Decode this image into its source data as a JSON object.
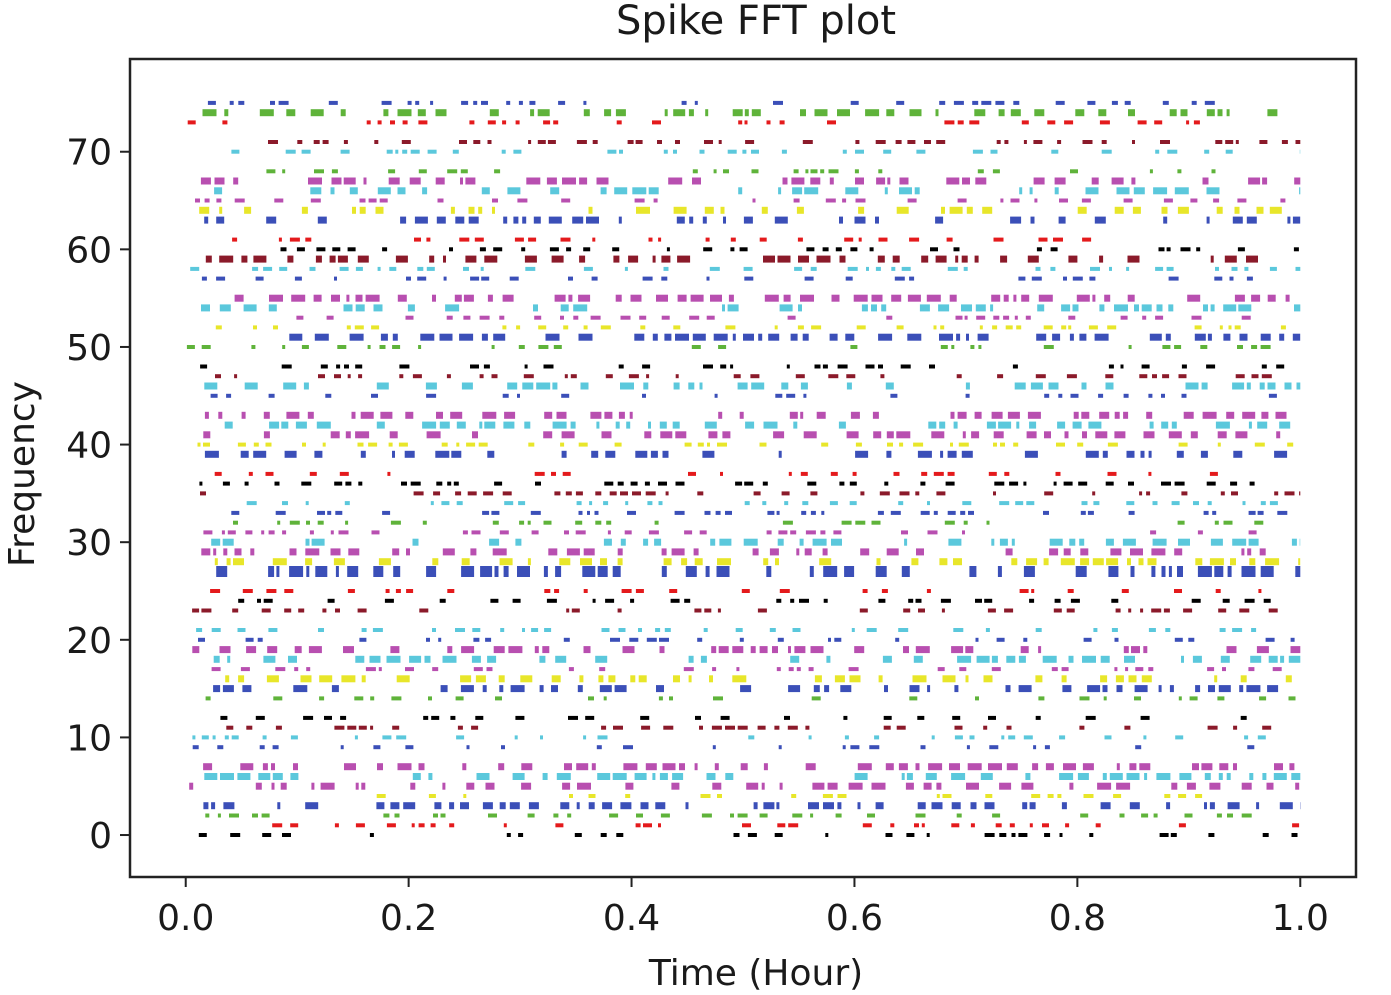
{
  "chart_data": {
    "type": "scatter",
    "subtype": "eventplot",
    "title": "Spike FFT plot",
    "xlabel": "Time (Hour)",
    "ylabel": "Frequency",
    "xlim": [
      -0.05,
      1.05
    ],
    "ylim": [
      -4.3,
      79.5
    ],
    "xticks": [
      0.0,
      0.2,
      0.4,
      0.6,
      0.8,
      1.0
    ],
    "xtick_labels": [
      "0.0",
      "0.2",
      "0.4",
      "0.6",
      "0.8",
      "1.0"
    ],
    "yticks": [
      0,
      10,
      20,
      30,
      40,
      50,
      60,
      70
    ],
    "ytick_labels": [
      "0",
      "10",
      "20",
      "30",
      "40",
      "50",
      "60",
      "70"
    ],
    "grid": false,
    "legend": "none",
    "x_range": [
      0.0,
      1.0
    ],
    "rows": [
      {
        "y": 0,
        "color": "#000000",
        "density": 0.35,
        "width": 1
      },
      {
        "y": 1,
        "color": "#e41a1c",
        "density": 0.35,
        "width": 1
      },
      {
        "y": 2,
        "color": "#5fb33a",
        "density": 0.4,
        "width": 1
      },
      {
        "y": 3,
        "color": "#3b4fb8",
        "density": 0.5,
        "width": 2
      },
      {
        "y": 4,
        "color": "#e8e62a",
        "density": 0.3,
        "width": 1
      },
      {
        "y": 5,
        "color": "#b84fb0",
        "density": 0.45,
        "width": 2
      },
      {
        "y": 6,
        "color": "#5bc8dc",
        "density": 0.45,
        "width": 2
      },
      {
        "y": 7,
        "color": "#b84fb0",
        "density": 0.5,
        "width": 2
      },
      {
        "y": 9,
        "color": "#3b4fb8",
        "density": 0.3,
        "width": 1
      },
      {
        "y": 10,
        "color": "#5bc8dc",
        "density": 0.35,
        "width": 1
      },
      {
        "y": 11,
        "color": "#8b1a2a",
        "density": 0.35,
        "width": 1
      },
      {
        "y": 12,
        "color": "#000000",
        "density": 0.35,
        "width": 1
      },
      {
        "y": 14,
        "color": "#5fb33a",
        "density": 0.3,
        "width": 1
      },
      {
        "y": 15,
        "color": "#3b4fb8",
        "density": 0.45,
        "width": 2
      },
      {
        "y": 16,
        "color": "#e8e62a",
        "density": 0.4,
        "width": 2
      },
      {
        "y": 17,
        "color": "#b84fb0",
        "density": 0.35,
        "width": 1
      },
      {
        "y": 18,
        "color": "#5bc8dc",
        "density": 0.4,
        "width": 2
      },
      {
        "y": 19,
        "color": "#b84fb0",
        "density": 0.4,
        "width": 2
      },
      {
        "y": 20,
        "color": "#3b4fb8",
        "density": 0.3,
        "width": 1
      },
      {
        "y": 21,
        "color": "#5bc8dc",
        "density": 0.3,
        "width": 1
      },
      {
        "y": 23,
        "color": "#8b1a2a",
        "density": 0.35,
        "width": 1
      },
      {
        "y": 24,
        "color": "#000000",
        "density": 0.35,
        "width": 1
      },
      {
        "y": 25,
        "color": "#e41a1c",
        "density": 0.3,
        "width": 1
      },
      {
        "y": 27,
        "color": "#3b4fb8",
        "density": 0.55,
        "width": 3
      },
      {
        "y": 28,
        "color": "#e8e62a",
        "density": 0.4,
        "width": 2
      },
      {
        "y": 29,
        "color": "#b84fb0",
        "density": 0.4,
        "width": 2
      },
      {
        "y": 30,
        "color": "#5bc8dc",
        "density": 0.4,
        "width": 2
      },
      {
        "y": 31,
        "color": "#b84fb0",
        "density": 0.35,
        "width": 1
      },
      {
        "y": 32,
        "color": "#5fb33a",
        "density": 0.3,
        "width": 1
      },
      {
        "y": 33,
        "color": "#3b4fb8",
        "density": 0.3,
        "width": 1
      },
      {
        "y": 34,
        "color": "#5bc8dc",
        "density": 0.3,
        "width": 1
      },
      {
        "y": 35,
        "color": "#8b1a2a",
        "density": 0.4,
        "width": 1
      },
      {
        "y": 36,
        "color": "#000000",
        "density": 0.45,
        "width": 1
      },
      {
        "y": 37,
        "color": "#e41a1c",
        "density": 0.35,
        "width": 1
      },
      {
        "y": 39,
        "color": "#3b4fb8",
        "density": 0.45,
        "width": 2
      },
      {
        "y": 40,
        "color": "#e8e62a",
        "density": 0.35,
        "width": 1
      },
      {
        "y": 41,
        "color": "#b84fb0",
        "density": 0.45,
        "width": 2
      },
      {
        "y": 42,
        "color": "#5bc8dc",
        "density": 0.4,
        "width": 2
      },
      {
        "y": 43,
        "color": "#b84fb0",
        "density": 0.45,
        "width": 2
      },
      {
        "y": 45,
        "color": "#3b4fb8",
        "density": 0.25,
        "width": 1
      },
      {
        "y": 46,
        "color": "#5bc8dc",
        "density": 0.4,
        "width": 2
      },
      {
        "y": 47,
        "color": "#8b1a2a",
        "density": 0.35,
        "width": 1
      },
      {
        "y": 48,
        "color": "#000000",
        "density": 0.35,
        "width": 1
      },
      {
        "y": 50,
        "color": "#5fb33a",
        "density": 0.3,
        "width": 1
      },
      {
        "y": 51,
        "color": "#3b4fb8",
        "density": 0.45,
        "width": 2
      },
      {
        "y": 52,
        "color": "#e8e62a",
        "density": 0.35,
        "width": 1
      },
      {
        "y": 53,
        "color": "#b84fb0",
        "density": 0.35,
        "width": 1
      },
      {
        "y": 54,
        "color": "#5bc8dc",
        "density": 0.4,
        "width": 2
      },
      {
        "y": 55,
        "color": "#b84fb0",
        "density": 0.5,
        "width": 2
      },
      {
        "y": 57,
        "color": "#3b4fb8",
        "density": 0.3,
        "width": 1
      },
      {
        "y": 58,
        "color": "#5bc8dc",
        "density": 0.3,
        "width": 1
      },
      {
        "y": 59,
        "color": "#8b1a2a",
        "density": 0.45,
        "width": 2
      },
      {
        "y": 60,
        "color": "#000000",
        "density": 0.35,
        "width": 1
      },
      {
        "y": 61,
        "color": "#e41a1c",
        "density": 0.3,
        "width": 1
      },
      {
        "y": 63,
        "color": "#3b4fb8",
        "density": 0.45,
        "width": 2
      },
      {
        "y": 64,
        "color": "#e8e62a",
        "density": 0.4,
        "width": 2
      },
      {
        "y": 65,
        "color": "#b84fb0",
        "density": 0.35,
        "width": 1
      },
      {
        "y": 66,
        "color": "#5bc8dc",
        "density": 0.4,
        "width": 2
      },
      {
        "y": 67,
        "color": "#b84fb0",
        "density": 0.4,
        "width": 2
      },
      {
        "y": 68,
        "color": "#5fb33a",
        "density": 0.3,
        "width": 1
      },
      {
        "y": 70,
        "color": "#5bc8dc",
        "density": 0.35,
        "width": 1
      },
      {
        "y": 71,
        "color": "#8b1a2a",
        "density": 0.35,
        "width": 1
      },
      {
        "y": 73,
        "color": "#e41a1c",
        "density": 0.35,
        "width": 1
      },
      {
        "y": 74,
        "color": "#5fb33a",
        "density": 0.45,
        "width": 2
      },
      {
        "y": 75,
        "color": "#3b4fb8",
        "density": 0.35,
        "width": 1
      }
    ]
  }
}
